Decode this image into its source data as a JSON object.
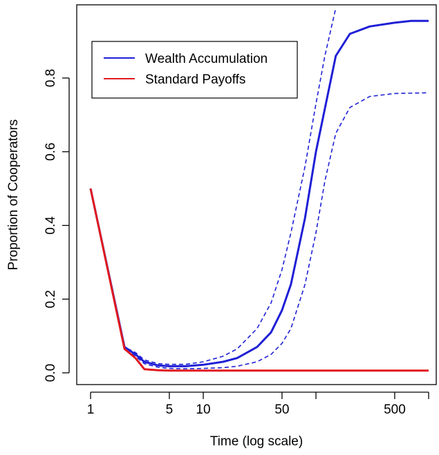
{
  "chart_data": {
    "type": "line",
    "xlabel": "Time (log scale)",
    "ylabel": "Proportion of Cooperators",
    "xscale": "log",
    "xlim": [
      1,
      1000
    ],
    "ylim": [
      0,
      0.98
    ],
    "xticks": [
      {
        "value": 1,
        "label": "1"
      },
      {
        "value": 5,
        "label": "5"
      },
      {
        "value": 10,
        "label": "10"
      },
      {
        "value": 50,
        "label": "50"
      },
      {
        "value": 100,
        "label": ""
      },
      {
        "value": 500,
        "label": "500"
      },
      {
        "value": 1000,
        "label": ""
      }
    ],
    "yticks": [
      {
        "value": 0.0,
        "label": "0.0"
      },
      {
        "value": 0.2,
        "label": "0.2"
      },
      {
        "value": 0.4,
        "label": "0.4"
      },
      {
        "value": 0.6,
        "label": "0.6"
      },
      {
        "value": 0.8,
        "label": "0.8"
      }
    ],
    "legend": {
      "placement": "top-left",
      "entries": [
        {
          "label": "Wealth Accumulation",
          "color": "#1f1fd6"
        },
        {
          "label": "Standard Payoffs",
          "color": "#e0191f"
        }
      ]
    },
    "series": [
      {
        "name": "Wealth Accumulation",
        "color": "#1f1fd6",
        "style": "solid",
        "x": [
          1,
          2,
          2.5,
          3,
          4,
          5,
          7,
          10,
          15,
          20,
          30,
          40,
          50,
          60,
          80,
          100,
          150,
          200,
          300,
          500,
          700,
          1000
        ],
        "y": [
          0.5,
          0.07,
          0.05,
          0.03,
          0.02,
          0.018,
          0.018,
          0.022,
          0.03,
          0.04,
          0.07,
          0.11,
          0.17,
          0.24,
          0.42,
          0.6,
          0.86,
          0.92,
          0.94,
          0.95,
          0.955,
          0.955
        ]
      },
      {
        "name": "Wealth Accumulation upper",
        "color": "#1f1fd6",
        "style": "dashed",
        "x": [
          1,
          2,
          2.5,
          3,
          4,
          5,
          7,
          10,
          15,
          20,
          30,
          40,
          50,
          60,
          80,
          100,
          120,
          150
        ],
        "y": [
          0.5,
          0.07,
          0.055,
          0.035,
          0.025,
          0.023,
          0.023,
          0.03,
          0.045,
          0.065,
          0.12,
          0.19,
          0.28,
          0.38,
          0.56,
          0.73,
          0.86,
          0.99
        ]
      },
      {
        "name": "Wealth Accumulation lower",
        "color": "#1f1fd6",
        "style": "dashed",
        "x": [
          1,
          2,
          2.5,
          3,
          4,
          5,
          7,
          10,
          15,
          20,
          30,
          40,
          50,
          60,
          80,
          100,
          120,
          150,
          200,
          300,
          500,
          1000
        ],
        "y": [
          0.5,
          0.065,
          0.045,
          0.025,
          0.015,
          0.012,
          0.011,
          0.012,
          0.014,
          0.018,
          0.03,
          0.05,
          0.08,
          0.12,
          0.24,
          0.38,
          0.52,
          0.65,
          0.72,
          0.75,
          0.758,
          0.76
        ]
      },
      {
        "name": "Standard Payoffs",
        "color": "#e0191f",
        "style": "solid",
        "x": [
          1,
          2,
          2.5,
          3,
          4,
          5,
          10,
          50,
          100,
          500,
          1000
        ],
        "y": [
          0.5,
          0.065,
          0.04,
          0.01,
          0.007,
          0.006,
          0.006,
          0.006,
          0.006,
          0.006,
          0.006
        ]
      }
    ]
  }
}
